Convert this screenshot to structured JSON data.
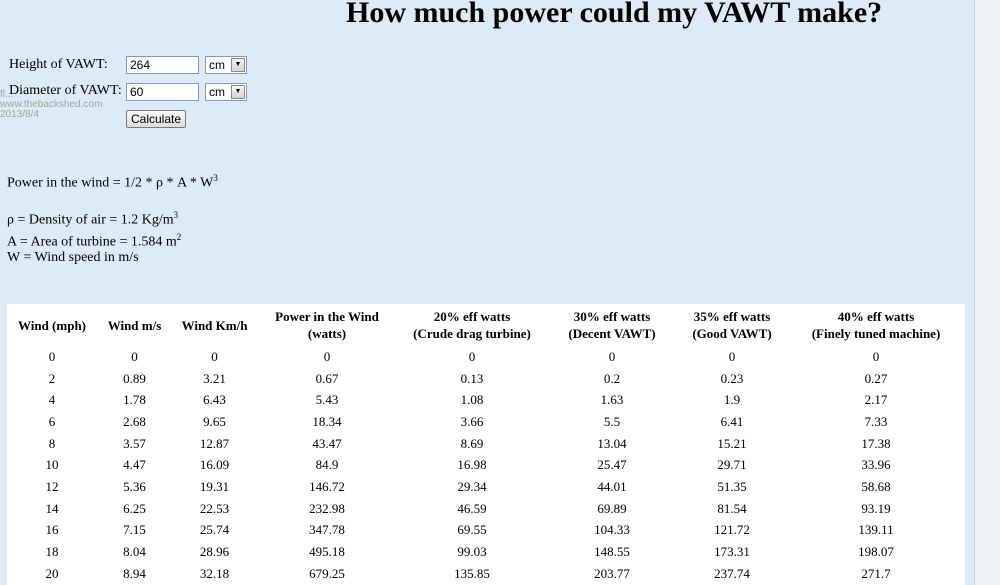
{
  "page": {
    "title": "How much power could my VAWT make?"
  },
  "form": {
    "height_label": "Height of VAWT:",
    "height_value": "264",
    "height_unit": "cm",
    "diameter_label": "Diameter of VAWT:",
    "diameter_value": "60",
    "diameter_unit": "cm",
    "calculate_label": "Calculate"
  },
  "watermark": {
    "line1": "fl...",
    "line2": "www.thebackshed.com",
    "line3": "2013/8/4"
  },
  "formulas": {
    "power_main": "Power in the wind = 1/2 * ρ * A * W",
    "power_exp": "3",
    "density_main": "ρ = Density of air = 1.2 Kg/m",
    "density_exp": "3",
    "area_main": "A = Area of turbine = 1.584 m",
    "area_exp": "2",
    "wind": "W = Wind speed in m/s"
  },
  "table": {
    "headers": [
      [
        "Wind (mph)",
        ""
      ],
      [
        "Wind m/s",
        ""
      ],
      [
        "Wind Km/h",
        ""
      ],
      [
        "Power in the Wind",
        "(watts)"
      ],
      [
        "20% eff watts",
        "(Crude drag turbine)"
      ],
      [
        "30% eff watts",
        "(Decent VAWT)"
      ],
      [
        "35% eff watts",
        "(Good VAWT)"
      ],
      [
        "40% eff watts",
        "(Finely tuned machine)"
      ]
    ],
    "rows": [
      [
        "0",
        "0",
        "0",
        "0",
        "0",
        "0",
        "0",
        "0"
      ],
      [
        "2",
        "0.89",
        "3.21",
        "0.67",
        "0.13",
        "0.2",
        "0.23",
        "0.27"
      ],
      [
        "4",
        "1.78",
        "6.43",
        "5.43",
        "1.08",
        "1.63",
        "1.9",
        "2.17"
      ],
      [
        "6",
        "2.68",
        "9.65",
        "18.34",
        "3.66",
        "5.5",
        "6.41",
        "7.33"
      ],
      [
        "8",
        "3.57",
        "12.87",
        "43.47",
        "8.69",
        "13.04",
        "15.21",
        "17.38"
      ],
      [
        "10",
        "4.47",
        "16.09",
        "84.9",
        "16.98",
        "25.47",
        "29.71",
        "33.96"
      ],
      [
        "12",
        "5.36",
        "19.31",
        "146.72",
        "29.34",
        "44.01",
        "51.35",
        "58.68"
      ],
      [
        "14",
        "6.25",
        "22.53",
        "232.98",
        "46.59",
        "69.89",
        "81.54",
        "93.19"
      ],
      [
        "16",
        "7.15",
        "25.74",
        "347.78",
        "69.55",
        "104.33",
        "121.72",
        "139.11"
      ],
      [
        "18",
        "8.04",
        "28.96",
        "495.18",
        "99.03",
        "148.55",
        "173.31",
        "198.07"
      ],
      [
        "20",
        "8.94",
        "32.18",
        "679.25",
        "135.85",
        "203.77",
        "237.74",
        "271.7"
      ]
    ]
  },
  "colors": {
    "background": "#dcebf7",
    "table_bg": "#ffffff"
  }
}
